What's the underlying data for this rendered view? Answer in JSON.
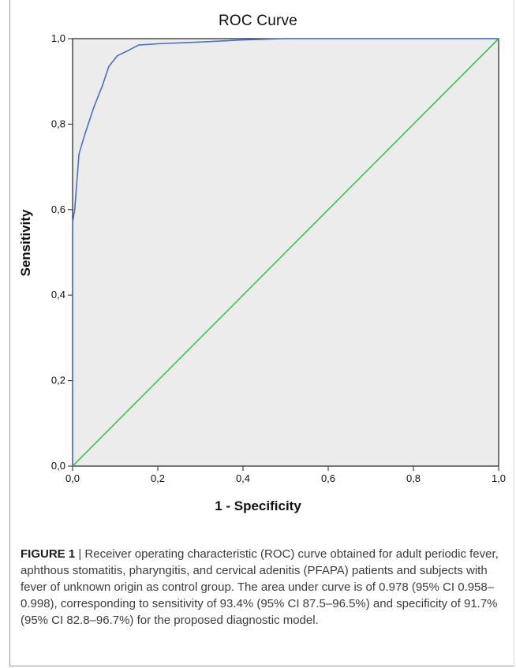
{
  "figure": {
    "caption_label": "FIGURE 1",
    "caption_text": " | Receiver operating characteristic (ROC) curve obtained for adult periodic fever, aphthous stomatitis, pharyngitis, and cervical adenitis (PFAPA) patients and subjects with fever of unknown origin as control group. The area under curve is of 0.978 (95% CI 0.958–0.998), corresponding to sensitivity of 93.4% (95% CI 87.5–96.5%) and specificity of 91.7% (95% CI 82.8–96.7%) for the proposed diagnostic model."
  },
  "chart_data": {
    "type": "line",
    "title": "ROC Curve",
    "xlabel": "1 - Specificity",
    "ylabel": "Sensitivity",
    "xlim": [
      0,
      1
    ],
    "ylim": [
      0,
      1
    ],
    "x_ticks": [
      "0,0",
      "0,2",
      "0,4",
      "0,6",
      "0,8",
      "1,0"
    ],
    "y_ticks": [
      "0,0",
      "0,2",
      "0,4",
      "0,6",
      "0,8",
      "1,0"
    ],
    "tick_values": [
      0,
      0.2,
      0.4,
      0.6,
      0.8,
      1.0
    ],
    "grid": false,
    "background": "#ececec",
    "series": [
      {
        "color": "#4a6fc4",
        "x": [
          0,
          0,
          0.005,
          0.015,
          0.03,
          0.05,
          0.07,
          0.085,
          0.105,
          0.13,
          0.155,
          0.2,
          0.3,
          0.4,
          0.5,
          0.7,
          1.0
        ],
        "y": [
          0,
          0.57,
          0.6,
          0.73,
          0.78,
          0.84,
          0.89,
          0.935,
          0.96,
          0.972,
          0.985,
          0.988,
          0.992,
          0.997,
          1.0,
          1.0,
          1.0
        ]
      },
      {
        "color": "#3ec24a",
        "x": [
          0,
          1
        ],
        "y": [
          0,
          1
        ]
      }
    ]
  }
}
